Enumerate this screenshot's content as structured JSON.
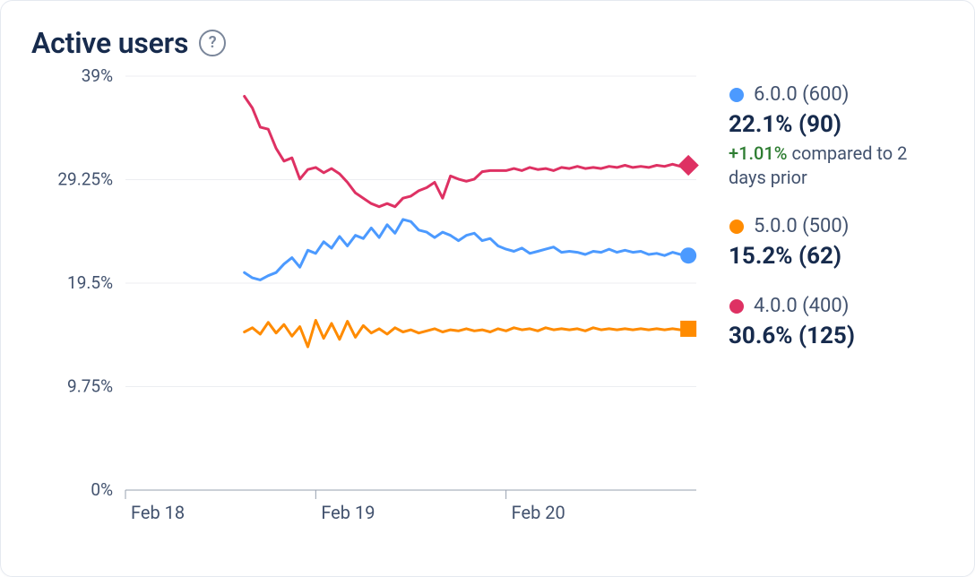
{
  "title": "Active users",
  "help_tooltip": "?",
  "chart": {
    "type": "line",
    "background_color": "#ffffff",
    "grid_color": "#eceef1",
    "axis_color": "#97a0af",
    "label_color": "#42526e",
    "label_fontsize": 19,
    "line_width": 3,
    "y_axis": {
      "min": 0,
      "max": 39,
      "ticks": [
        0,
        9.75,
        19.5,
        29.25,
        39
      ],
      "tick_labels": [
        "0%",
        "9.75%",
        "19.5%",
        "29.25%",
        "39%"
      ]
    },
    "x_axis": {
      "min": 0,
      "max": 72,
      "data_start": 15,
      "ticks": [
        0,
        24,
        48
      ],
      "tick_labels": [
        "Feb 18",
        "Feb 19",
        "Feb 20"
      ]
    },
    "series": [
      {
        "id": "v600",
        "label": "6.0.0 (600)",
        "color": "#4c9aff",
        "marker": "circle",
        "marker_size": 9,
        "values": [
          20.5,
          20.0,
          19.8,
          20.2,
          20.5,
          21.3,
          21.9,
          21.0,
          22.6,
          22.3,
          23.4,
          22.8,
          23.9,
          23.0,
          24.0,
          23.7,
          24.7,
          23.8,
          25.0,
          24.2,
          25.5,
          25.3,
          24.5,
          24.3,
          23.8,
          24.3,
          24.0,
          23.5,
          24.0,
          24.2,
          23.5,
          23.7,
          23.0,
          22.7,
          22.5,
          22.8,
          22.3,
          22.5,
          22.7,
          22.9,
          22.4,
          22.5,
          22.4,
          22.2,
          22.5,
          22.4,
          22.7,
          22.4,
          22.6,
          22.4,
          22.5,
          22.2,
          22.3,
          22.1,
          22.4,
          22.2,
          22.1
        ],
        "end_marker": "circle"
      },
      {
        "id": "v500",
        "label": "5.0.0 (500)",
        "color": "#ff8b00",
        "marker": "square",
        "marker_size": 9,
        "values": [
          14.9,
          15.3,
          14.7,
          15.8,
          14.8,
          15.6,
          14.5,
          15.4,
          13.5,
          16.0,
          14.3,
          15.7,
          14.2,
          15.9,
          14.4,
          15.5,
          14.8,
          15.2,
          14.7,
          15.3,
          14.9,
          15.1,
          14.8,
          15.0,
          15.2,
          14.9,
          15.1,
          15.0,
          15.2,
          15.0,
          15.1,
          14.9,
          15.2,
          15.0,
          15.3,
          15.1,
          15.2,
          15.0,
          15.3,
          15.1,
          15.2,
          15.1,
          15.2,
          15.0,
          15.3,
          15.1,
          15.2,
          15.1,
          15.2,
          15.1,
          15.2,
          15.1,
          15.2,
          15.1,
          15.2,
          15.1,
          15.2
        ],
        "end_marker": "square"
      },
      {
        "id": "v400",
        "label": "4.0.0 (400)",
        "color": "#de3163",
        "marker": "diamond",
        "marker_size": 11,
        "values": [
          37.1,
          36.0,
          34.2,
          34.0,
          32.2,
          31.0,
          31.3,
          29.3,
          30.2,
          30.4,
          29.9,
          30.3,
          29.8,
          29.0,
          28.0,
          27.5,
          27.0,
          26.7,
          27.0,
          26.7,
          27.5,
          27.7,
          28.2,
          28.5,
          29.0,
          27.5,
          29.6,
          29.3,
          29.1,
          29.3,
          30.0,
          30.1,
          30.1,
          30.1,
          30.3,
          30.1,
          30.4,
          30.2,
          30.3,
          30.1,
          30.4,
          30.3,
          30.5,
          30.3,
          30.4,
          30.3,
          30.5,
          30.4,
          30.6,
          30.4,
          30.5,
          30.4,
          30.6,
          30.5,
          30.7,
          30.5,
          30.6
        ],
        "end_marker": "diamond"
      }
    ]
  },
  "legend": [
    {
      "series_id": "v600",
      "color": "#4c9aff",
      "marker": "circle",
      "label": "6.0.0 (600)",
      "value": "22.1% (90)",
      "delta_value": "+1.01%",
      "delta_text": "compared to 2 days prior",
      "delta_color": "#2e7d32"
    },
    {
      "series_id": "v500",
      "color": "#ff8b00",
      "marker": "circle",
      "label": "5.0.0 (500)",
      "value": "15.2% (62)"
    },
    {
      "series_id": "v400",
      "color": "#de3163",
      "marker": "circle",
      "label": "4.0.0 (400)",
      "value": "30.6% (125)"
    }
  ]
}
